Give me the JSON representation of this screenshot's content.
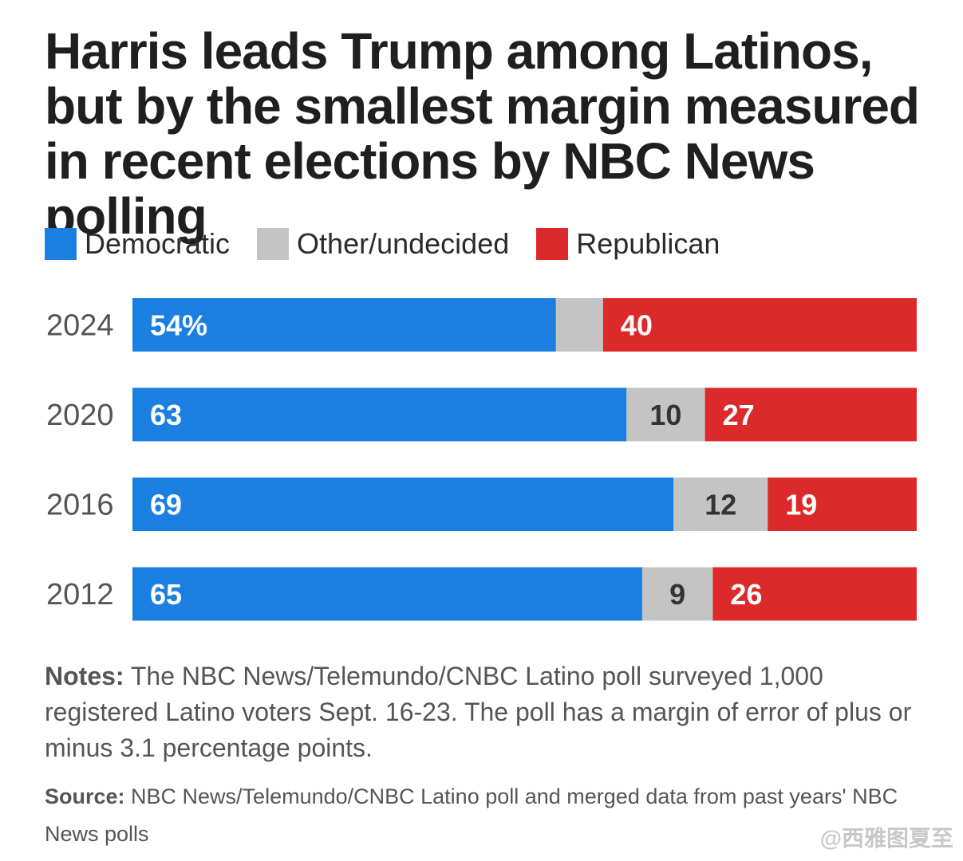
{
  "title": "Harris leads Trump among Latinos, but by the smallest margin measured in recent elections by NBC News polling",
  "legend": [
    {
      "label": "Democratic",
      "color": "#1a7fe0"
    },
    {
      "label": "Other/undecided",
      "color": "#c4c4c4"
    },
    {
      "label": "Republican",
      "color": "#dc2a2a"
    }
  ],
  "chart_data": {
    "type": "bar",
    "orientation": "horizontal",
    "stacked": true,
    "normalized": "percent",
    "categories": [
      "2024",
      "2020",
      "2016",
      "2012"
    ],
    "series": [
      {
        "name": "Democratic",
        "color": "#1a7fe0",
        "values": [
          54,
          63,
          69,
          65
        ],
        "labels": [
          "54%",
          "63",
          "69",
          "65"
        ]
      },
      {
        "name": "Other/undecided",
        "color": "#c4c4c4",
        "values": [
          6,
          10,
          12,
          9
        ],
        "labels": [
          "",
          "10",
          "12",
          "9"
        ]
      },
      {
        "name": "Republican",
        "color": "#dc2a2a",
        "values": [
          40,
          27,
          19,
          26
        ],
        "labels": [
          "40",
          "27",
          "19",
          "26"
        ]
      }
    ],
    "xlim": [
      0,
      100
    ],
    "grid": false,
    "legend_position": "top-left"
  },
  "notes": {
    "label": "Notes:",
    "text": " The NBC News/Telemundo/CNBC Latino poll surveyed 1,000 registered Latino voters Sept. 16-23. The poll has a margin of error of plus or minus 3.1 percentage points."
  },
  "source": {
    "label": "Source:",
    "text": " NBC News/Telemundo/CNBC Latino poll and merged data from past years' NBC News polls"
  },
  "watermark": "@西雅图夏至"
}
